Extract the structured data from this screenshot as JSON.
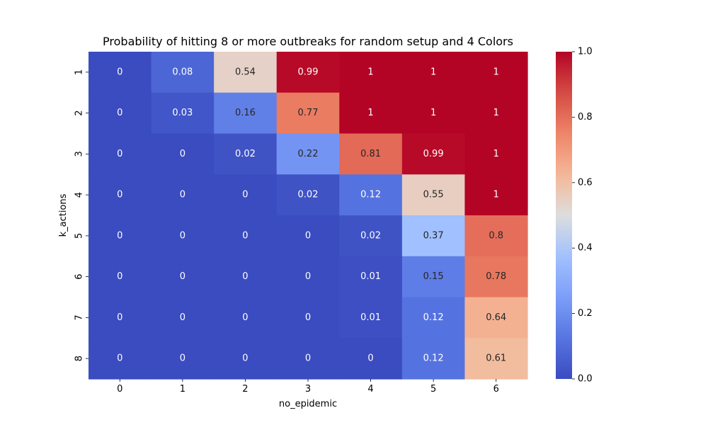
{
  "chart_data": {
    "type": "heatmap",
    "title": "Probability of hitting 8 or more outbreaks for random setup and 4 Colors",
    "xlabel": "no_epidemic",
    "ylabel": "k_actions",
    "x_categories": [
      "0",
      "1",
      "2",
      "3",
      "4",
      "5",
      "6"
    ],
    "y_categories": [
      "1",
      "2",
      "3",
      "4",
      "5",
      "6",
      "7",
      "8"
    ],
    "values": [
      [
        0,
        0.08,
        0.54,
        0.99,
        1,
        1,
        1
      ],
      [
        0,
        0.03,
        0.16,
        0.77,
        1,
        1,
        1
      ],
      [
        0,
        0,
        0.02,
        0.22,
        0.81,
        0.99,
        1
      ],
      [
        0,
        0,
        0,
        0.02,
        0.12,
        0.55,
        1
      ],
      [
        0,
        0,
        0,
        0,
        0.02,
        0.37,
        0.8
      ],
      [
        0,
        0,
        0,
        0,
        0.01,
        0.15,
        0.78
      ],
      [
        0,
        0,
        0,
        0,
        0.01,
        0.12,
        0.64
      ],
      [
        0,
        0,
        0,
        0,
        0,
        0.12,
        0.61
      ]
    ],
    "colormap": "coolwarm",
    "vmin": 0.0,
    "vmax": 1.0,
    "colorbar_ticks": [
      "0.0",
      "0.2",
      "0.4",
      "0.6",
      "0.8",
      "1.0"
    ],
    "colorbar_tick_values": [
      0.0,
      0.2,
      0.4,
      0.6,
      0.8,
      1.0
    ],
    "annotations": true,
    "grid": false
  }
}
